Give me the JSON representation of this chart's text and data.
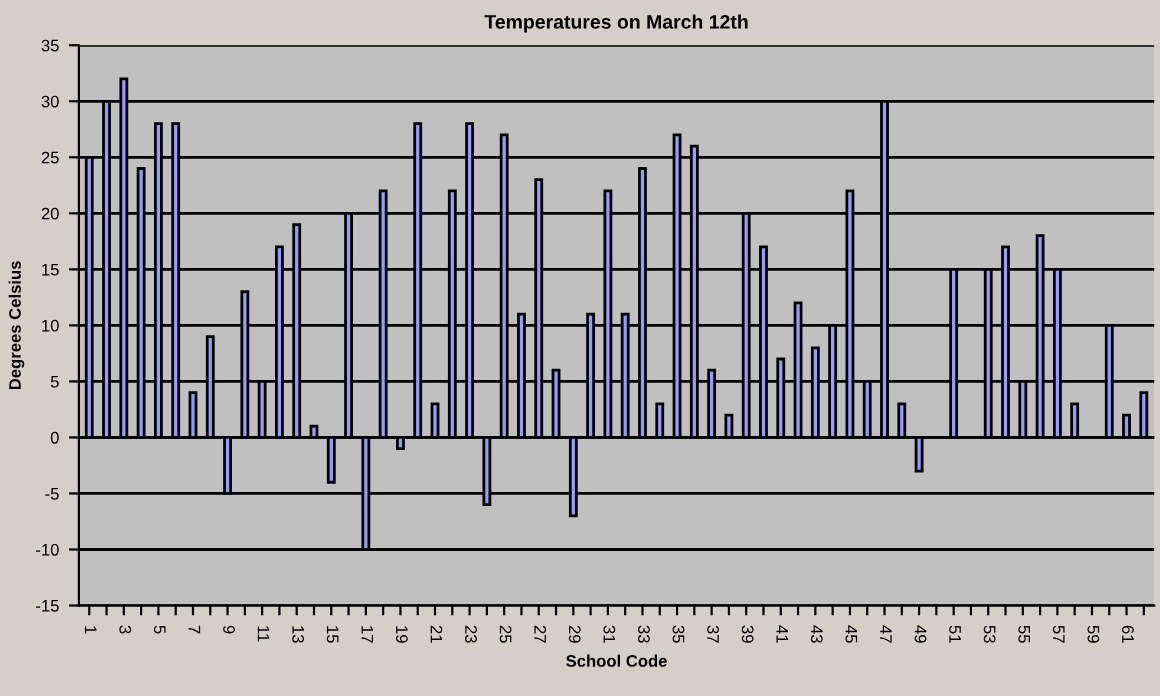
{
  "chart_data": {
    "type": "bar",
    "title": "Temperatures on March 12th",
    "xlabel": "School Code",
    "ylabel": "Degrees Celsius",
    "categories": [
      "1",
      null,
      "3",
      null,
      "5",
      null,
      "7",
      null,
      "9",
      null,
      "11",
      null,
      "13",
      null,
      "15",
      null,
      "17",
      null,
      "19",
      null,
      "21",
      null,
      "23",
      null,
      "25",
      null,
      "27",
      null,
      "29",
      null,
      "31",
      null,
      "33",
      null,
      "35",
      null,
      "37",
      null,
      "39",
      null,
      "41",
      null,
      "43",
      null,
      "45",
      null,
      "47",
      null,
      "49",
      null,
      "51",
      null,
      "53",
      null,
      "55",
      null,
      "57",
      null,
      "59",
      null,
      "61",
      null
    ],
    "values": [
      25,
      30,
      32,
      24,
      28,
      28,
      4,
      9,
      -5,
      13,
      5,
      17,
      19,
      1,
      -4,
      20,
      -10,
      22,
      -1,
      28,
      3,
      22,
      28,
      -6,
      27,
      11,
      23,
      6,
      -7,
      11,
      22,
      11,
      24,
      3,
      27,
      26,
      6,
      2,
      20,
      17,
      7,
      12,
      8,
      10,
      22,
      5,
      30,
      3,
      -3,
      null,
      15,
      null,
      15,
      17,
      5,
      18,
      15,
      3,
      null,
      10,
      2,
      4
    ],
    "color": "#9999ff",
    "ylim": [
      -15,
      35
    ],
    "yticks": [
      -15,
      -10,
      -5,
      0,
      5,
      10,
      15,
      20,
      25,
      30,
      35
    ],
    "grid": "y",
    "legend": false
  }
}
